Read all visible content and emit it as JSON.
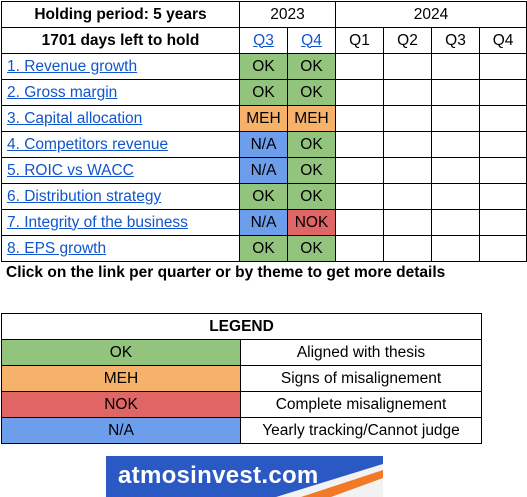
{
  "header": {
    "holding_period": "Holding period: 5 years",
    "days_left": "1701 days left to hold",
    "year_2023": "2023",
    "year_2024": "2024",
    "quarters_2023": [
      "Q3",
      "Q4"
    ],
    "quarters_2024": [
      "Q1",
      "Q2",
      "Q3",
      "Q4"
    ]
  },
  "rows": [
    {
      "theme": "1. Revenue growth",
      "q3": "OK",
      "q4": "OK"
    },
    {
      "theme": "2. Gross margin",
      "q3": "OK",
      "q4": "OK"
    },
    {
      "theme": "3. Capital allocation",
      "q3": "MEH",
      "q4": "MEH"
    },
    {
      "theme": "4. Competitors revenue",
      "q3": "N/A",
      "q4": "OK"
    },
    {
      "theme": "5. ROIC vs WACC",
      "q3": "N/A",
      "q4": "OK"
    },
    {
      "theme": "6. Distribution strategy",
      "q3": "OK",
      "q4": "OK"
    },
    {
      "theme": "7. Integrity of the business",
      "q3": "N/A",
      "q4": "NOK"
    },
    {
      "theme": "8. EPS growth",
      "q3": "OK",
      "q4": "OK"
    }
  ],
  "note": "Click on the link per quarter or by theme to get more details",
  "legend": {
    "title": "LEGEND",
    "items": [
      {
        "status": "OK",
        "meaning": "Aligned with thesis"
      },
      {
        "status": "MEH",
        "meaning": "Signs of misalignement"
      },
      {
        "status": "NOK",
        "meaning": "Complete misalignement"
      },
      {
        "status": "N/A",
        "meaning": "Yearly tracking/Cannot judge"
      }
    ]
  },
  "colors": {
    "OK": "#93c47d",
    "MEH": "#f6b26b",
    "NOK": "#e06666",
    "N/A": "#6d9eeb",
    "link": "#1155cc",
    "logo_bg": "#2b59c3"
  },
  "logo": {
    "text": "atmosinvest.com"
  }
}
